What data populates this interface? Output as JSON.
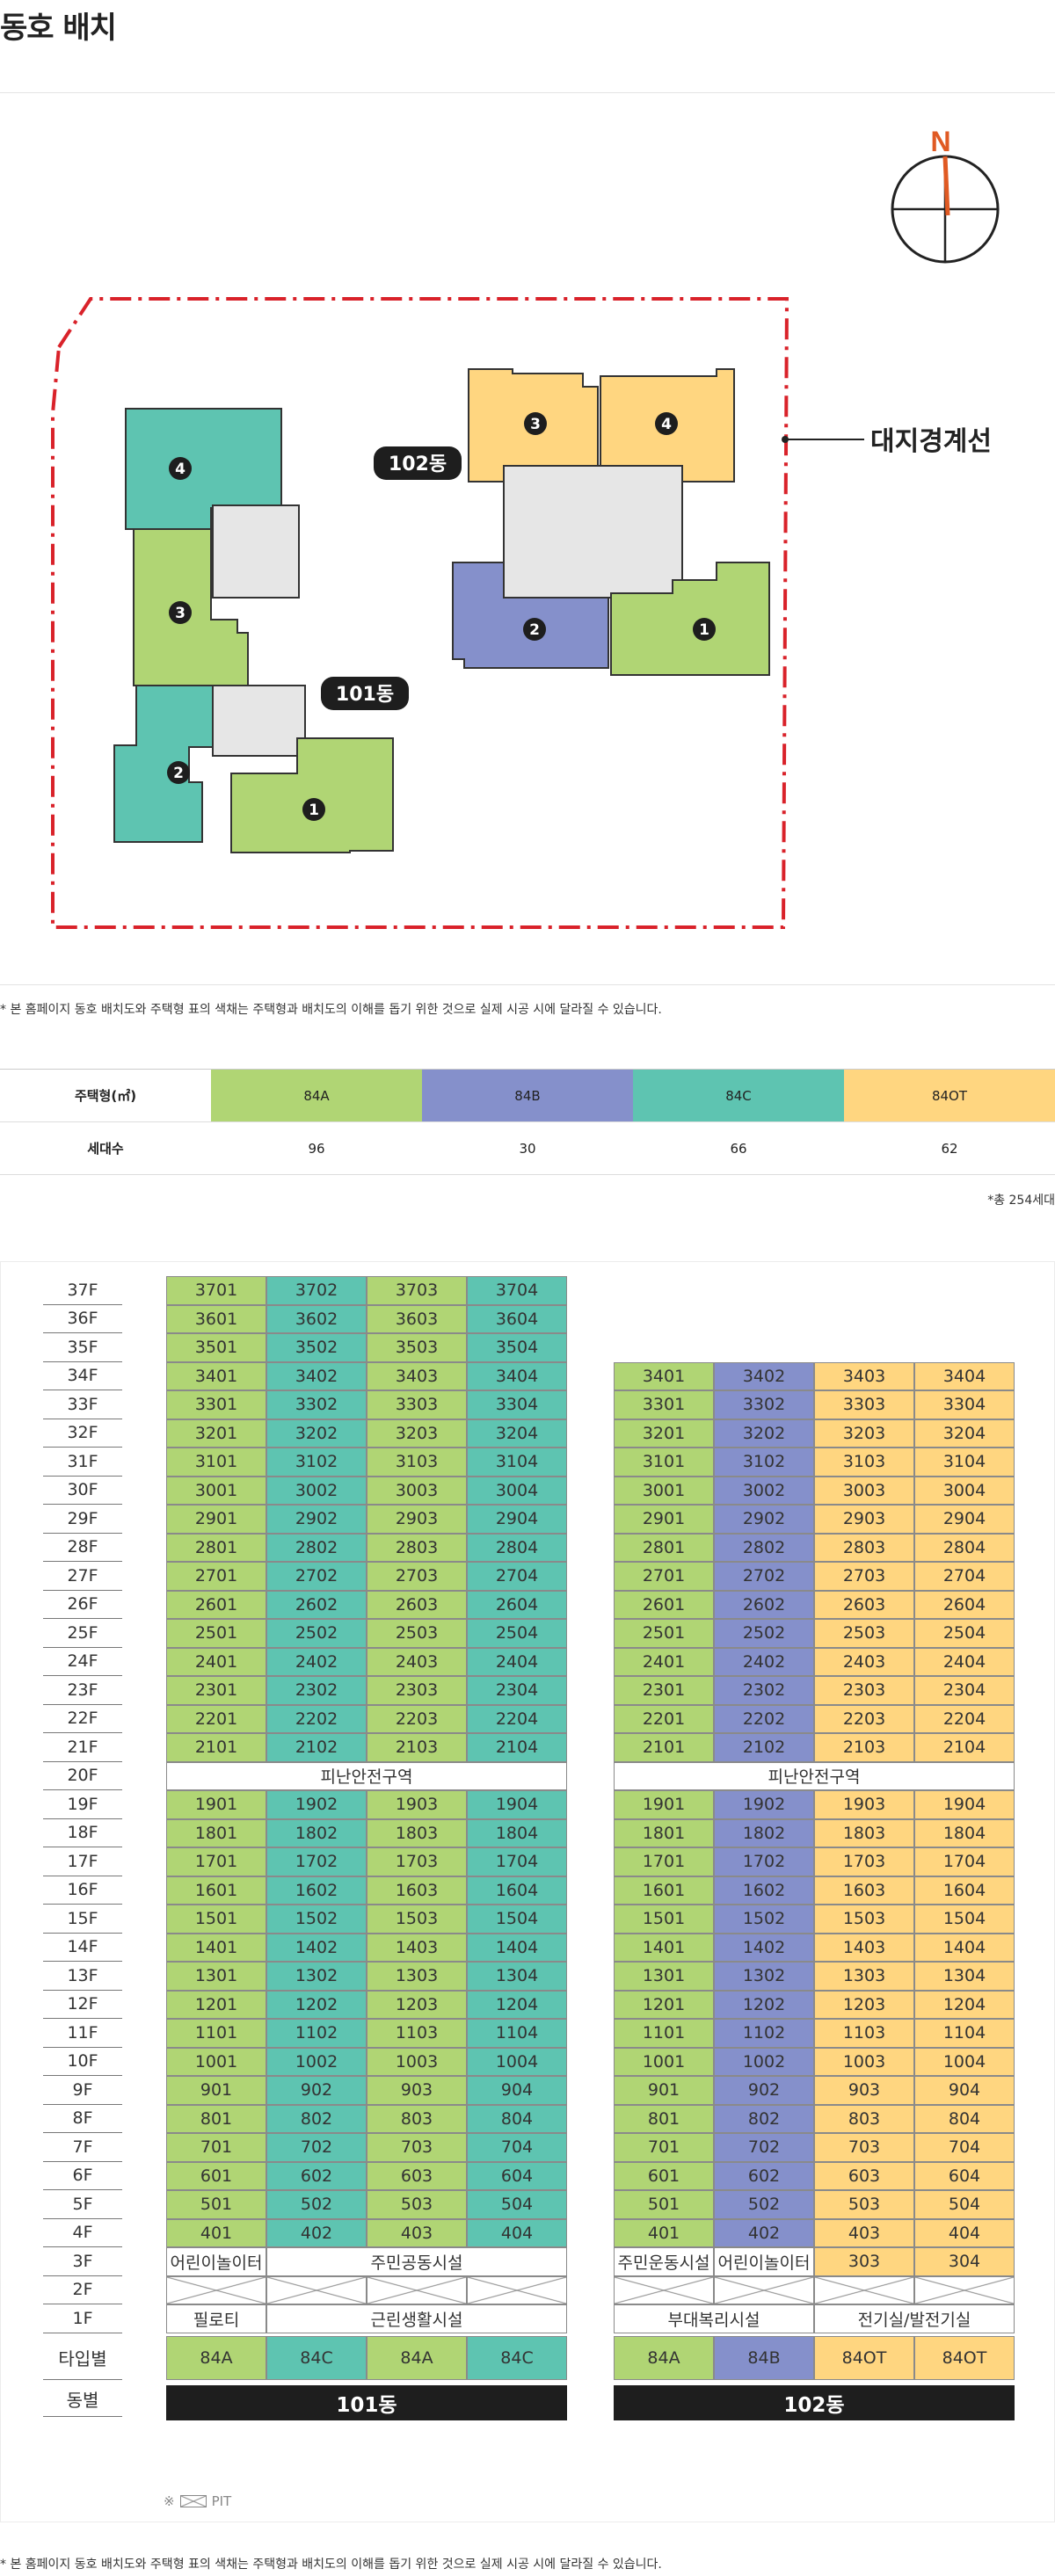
{
  "page_title": "동호 배치",
  "site_plan": {
    "compass_label": "N",
    "boundary_label": "대지경계선",
    "building_101": "101동",
    "building_102": "102동",
    "unit_markers": [
      "1",
      "2",
      "3",
      "4"
    ]
  },
  "disclaimer": "* 본 홈페이지 동호 배치도와 주택형 표의 색채는 주택형과 배치도의 이해를 돕기 위한 것으로 실제 시공 시에 달라질 수 있습니다.",
  "colors": {
    "84A": "#b0d574",
    "84B": "#8590cb",
    "84C": "#5ec4b1",
    "84OT": "#ffd680",
    "core": "#e6e6e6",
    "boundary": "#d9222a",
    "dark": "#1e1e1e"
  },
  "unit_table": {
    "header_label": "주택형(㎡)",
    "count_label": "세대수",
    "types": [
      {
        "name": "84A",
        "count": "96"
      },
      {
        "name": "84B",
        "count": "30"
      },
      {
        "name": "84C",
        "count": "66"
      },
      {
        "name": "84OT",
        "count": "62"
      }
    ],
    "total": "*총 254세대"
  },
  "floor_chart": {
    "refuge_label": "피난안전구역",
    "type_label": "타입별",
    "building_label": "동별",
    "pit_note_prefix": "※",
    "pit_note": "PIT",
    "b101": {
      "name": "101동",
      "top_floor": 37,
      "types": [
        "84A",
        "84C",
        "84A",
        "84C"
      ],
      "floor3": [
        {
          "text": "어린이놀이터",
          "span": 1
        },
        {
          "text": "주민공동시설",
          "span": 3
        }
      ],
      "floor1": [
        {
          "text": "필로티",
          "span": 1
        },
        {
          "text": "근린생활시설",
          "span": 3
        }
      ]
    },
    "b102": {
      "name": "102동",
      "top_floor": 34,
      "types": [
        "84A",
        "84B",
        "84OT",
        "84OT"
      ],
      "floor3": [
        {
          "text": "주민운동시설",
          "span": 1
        },
        {
          "text": "어린이놀이터",
          "span": 1
        },
        {
          "text": "303",
          "span": 1
        },
        {
          "text": "304",
          "span": 1
        }
      ],
      "floor1": [
        {
          "text": "부대복리시설",
          "span": 2
        },
        {
          "text": "전기실/발전기실",
          "span": 2
        }
      ]
    }
  }
}
